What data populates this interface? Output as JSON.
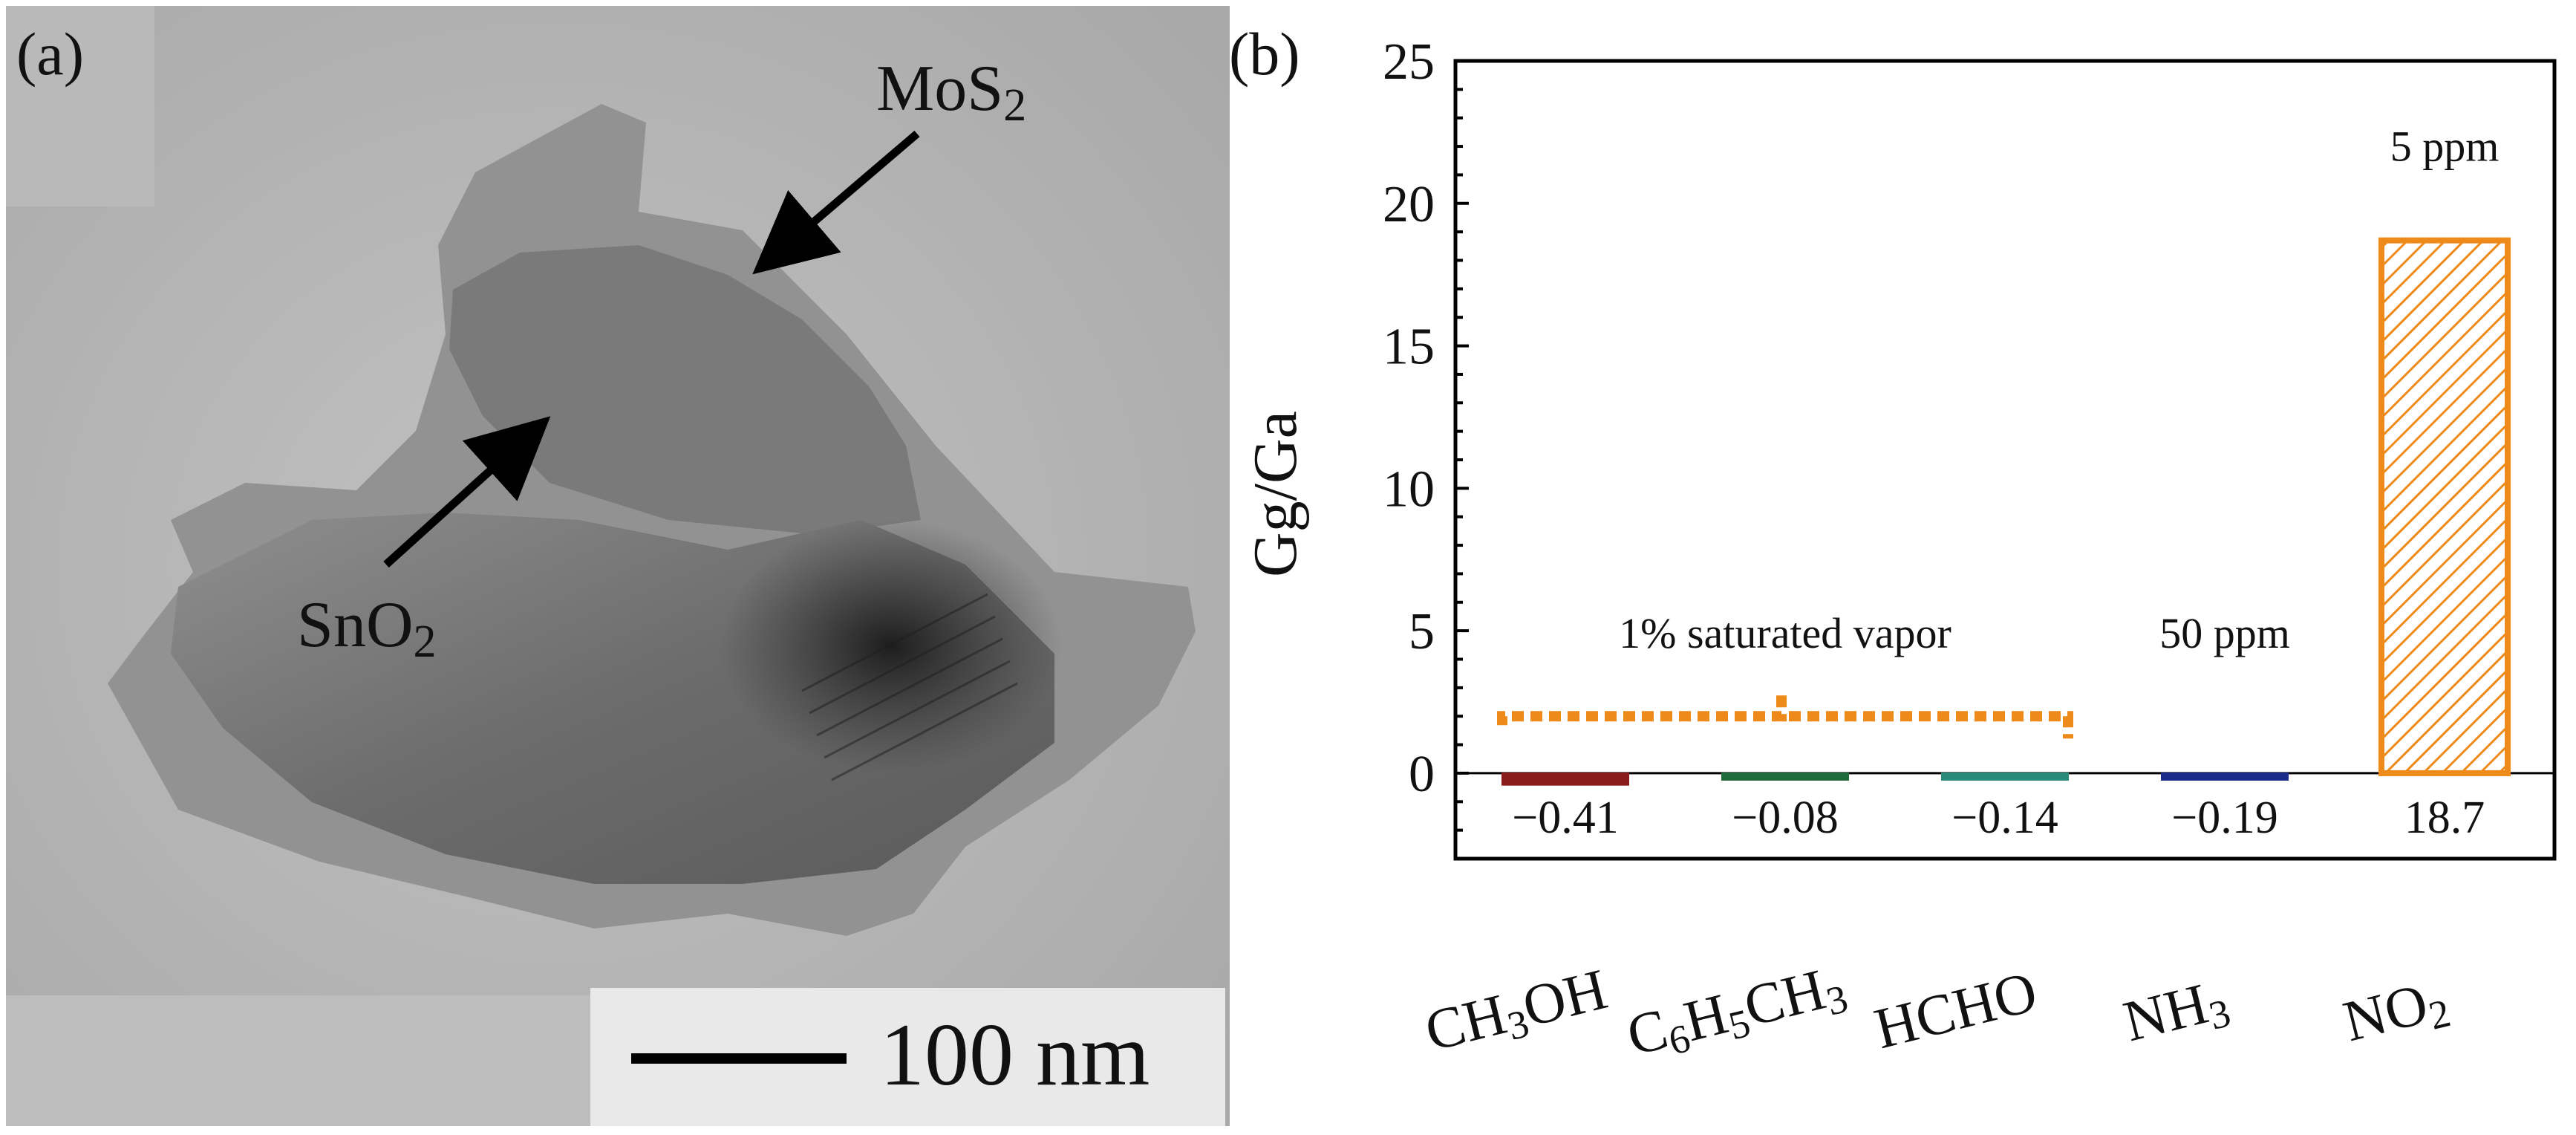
{
  "panel_a": {
    "label": "(a)",
    "annotation_mos2": {
      "base": "MoS",
      "sub": "2"
    },
    "annotation_sno2": {
      "base": "SnO",
      "sub": "2"
    },
    "scale_bar_text": "100 nm"
  },
  "panel_b": {
    "label": "(b)",
    "annotation_vapor": "1% saturated vapor",
    "annotation_nh3_conc": "50 ppm",
    "annotation_no2_conc": "5 ppm"
  },
  "chart_data": {
    "type": "bar",
    "ylabel": "Gg/Ga",
    "xlabel": "",
    "ylim": [
      -3,
      25
    ],
    "yticks": [
      0,
      5,
      10,
      15,
      20,
      25
    ],
    "ytick_labels": [
      "0",
      "5",
      "10",
      "15",
      "20",
      "25"
    ],
    "grid": false,
    "categories": [
      {
        "name": "CH3OH",
        "parts": [
          [
            "CH",
            ""
          ],
          [
            "3",
            "sub"
          ],
          [
            "OH",
            ""
          ]
        ]
      },
      {
        "name": "C6H5CH3",
        "parts": [
          [
            "C",
            ""
          ],
          [
            "6",
            "sub"
          ],
          [
            "H",
            ""
          ],
          [
            "5",
            "sub"
          ],
          [
            "CH",
            ""
          ],
          [
            "3",
            "sub"
          ]
        ]
      },
      {
        "name": "HCHO",
        "parts": [
          [
            "HCHO",
            ""
          ]
        ]
      },
      {
        "name": "NH3",
        "parts": [
          [
            "NH",
            ""
          ],
          [
            "3",
            "sub"
          ]
        ]
      },
      {
        "name": "NO2",
        "parts": [
          [
            "NO",
            ""
          ],
          [
            "2",
            "sub"
          ]
        ]
      }
    ],
    "values": [
      -0.41,
      -0.08,
      -0.14,
      -0.19,
      18.7
    ],
    "value_labels": [
      "−0.41",
      "−0.08",
      "−0.14",
      "−0.19",
      "18.7"
    ],
    "bar_colors": [
      "#8b1a1a",
      "#1e6b3a",
      "#2a8a7a",
      "#1a2a8a",
      "#ee8a1a"
    ],
    "vapor_group_level": 2.0
  }
}
